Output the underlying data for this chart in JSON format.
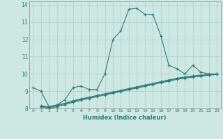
{
  "xlabel": "Humidex (Indice chaleur)",
  "background_color": "#cde8e3",
  "grid_color": "#c0ddd8",
  "line_color": "#2d7d74",
  "xlim": [
    -0.5,
    23.5
  ],
  "ylim": [
    8,
    14.2
  ],
  "yticks": [
    8,
    9,
    10,
    11,
    12,
    13,
    14
  ],
  "xticks": [
    0,
    1,
    2,
    3,
    4,
    5,
    6,
    7,
    8,
    9,
    10,
    11,
    12,
    13,
    14,
    15,
    16,
    17,
    18,
    19,
    20,
    21,
    22,
    23
  ],
  "series1_x": [
    0,
    1,
    2,
    3,
    4,
    5,
    6,
    7,
    8,
    9,
    10,
    11,
    12,
    13,
    14,
    15,
    16,
    17,
    18,
    19,
    20,
    21,
    22,
    23
  ],
  "series1_y": [
    9.2,
    9.0,
    8.1,
    8.2,
    8.5,
    9.2,
    9.3,
    9.1,
    9.1,
    10.0,
    12.0,
    12.5,
    13.75,
    13.8,
    13.45,
    13.45,
    12.2,
    10.5,
    10.3,
    10.0,
    10.5,
    10.1,
    10.0,
    10.0
  ],
  "series2_x": [
    1,
    2,
    3,
    4,
    5,
    6,
    7,
    8,
    9,
    10,
    11,
    12,
    13,
    14,
    15,
    16,
    17,
    18,
    19,
    20,
    21,
    22,
    23
  ],
  "series2_y": [
    8.15,
    8.1,
    8.2,
    8.3,
    8.45,
    8.55,
    8.65,
    8.75,
    8.85,
    8.95,
    9.05,
    9.15,
    9.25,
    9.35,
    9.45,
    9.55,
    9.65,
    9.75,
    9.82,
    9.88,
    9.93,
    9.97,
    10.0
  ],
  "series3_x": [
    1,
    2,
    3,
    4,
    5,
    6,
    7,
    8,
    9,
    10,
    11,
    12,
    13,
    14,
    15,
    16,
    17,
    18,
    19,
    20,
    21,
    22,
    23
  ],
  "series3_y": [
    8.12,
    8.05,
    8.15,
    8.28,
    8.4,
    8.52,
    8.62,
    8.72,
    8.82,
    8.92,
    9.02,
    9.12,
    9.22,
    9.32,
    9.42,
    9.52,
    9.62,
    9.72,
    9.79,
    9.85,
    9.9,
    9.95,
    9.99
  ],
  "series4_x": [
    1,
    2,
    3,
    4,
    5,
    6,
    7,
    8,
    9,
    10,
    11,
    12,
    13,
    14,
    15,
    16,
    17,
    18,
    19,
    20,
    21,
    22,
    23
  ],
  "series4_y": [
    8.1,
    8.0,
    8.1,
    8.22,
    8.35,
    8.47,
    8.58,
    8.68,
    8.78,
    8.88,
    8.98,
    9.08,
    9.18,
    9.28,
    9.38,
    9.48,
    9.58,
    9.68,
    9.75,
    9.82,
    9.87,
    9.92,
    9.96
  ]
}
